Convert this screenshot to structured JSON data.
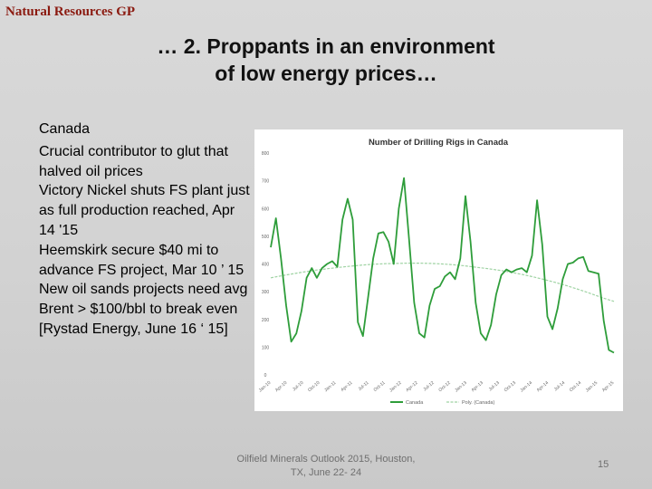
{
  "header": {
    "org": "Natural Resources GP"
  },
  "slide": {
    "title_lines": [
      "… 2. Proppants in an environment",
      "of low energy prices…"
    ],
    "heading": "Canada",
    "bullets": [
      "Crucial contributor to glut that halved oil prices",
      "Victory Nickel shuts FS plant just as full production reached, Apr 14 '15",
      "Heemskirk secure $40 mi to advance FS project, Mar 10 ’ 15",
      "New oil sands projects need avg Brent > $100/bbl to break even [Rystad Energy, June 16 ‘ 15]"
    ]
  },
  "footer": {
    "lines": [
      "Oilfield Minerals Outlook 2015, Houston,",
      "TX, June 22- 24"
    ],
    "page": "15"
  },
  "chart_data": {
    "type": "line",
    "title": "Number of Drilling Rigs in Canada",
    "ylim": [
      0,
      800
    ],
    "yticks": [
      0,
      100,
      200,
      300,
      400,
      500,
      600,
      700,
      800
    ],
    "xtick_labels": [
      "Jan-10",
      "Apr-10",
      "Jul-10",
      "Oct-10",
      "Jan-11",
      "Apr-11",
      "Jul-11",
      "Oct-11",
      "Jan-12",
      "Apr-12",
      "Jul-12",
      "Oct-12",
      "Jan-13",
      "Apr-13",
      "Jul-13",
      "Oct-13",
      "Jan-14",
      "Apr-14",
      "Jul-14",
      "Oct-14",
      "Jan-15",
      "Apr-15"
    ],
    "grid": false,
    "legend_position": "bottom",
    "series": [
      {
        "name": "Canada",
        "color": "#2e9d3a",
        "values": [
          460,
          565,
          420,
          250,
          120,
          150,
          230,
          350,
          385,
          350,
          385,
          400,
          410,
          390,
          560,
          635,
          560,
          190,
          140,
          280,
          420,
          510,
          515,
          480,
          400,
          600,
          710,
          490,
          260,
          150,
          135,
          250,
          310,
          320,
          355,
          370,
          345,
          420,
          645,
          480,
          260,
          150,
          125,
          180,
          290,
          360,
          380,
          370,
          380,
          385,
          370,
          430,
          630,
          470,
          210,
          165,
          240,
          345,
          400,
          405,
          420,
          425,
          375,
          370,
          365,
          195,
          90,
          80
        ]
      },
      {
        "name": "Poly. (Canada)",
        "color": "#9fd3a3",
        "dashed": true,
        "values": [
          350,
          358,
          365,
          372,
          378,
          383,
          388,
          392,
          396,
          399,
          401,
          402,
          403,
          403,
          402,
          400,
          397,
          393,
          388,
          383,
          377,
          370,
          362,
          353,
          343,
          332,
          320,
          307,
          293,
          278,
          265
        ]
      }
    ]
  }
}
